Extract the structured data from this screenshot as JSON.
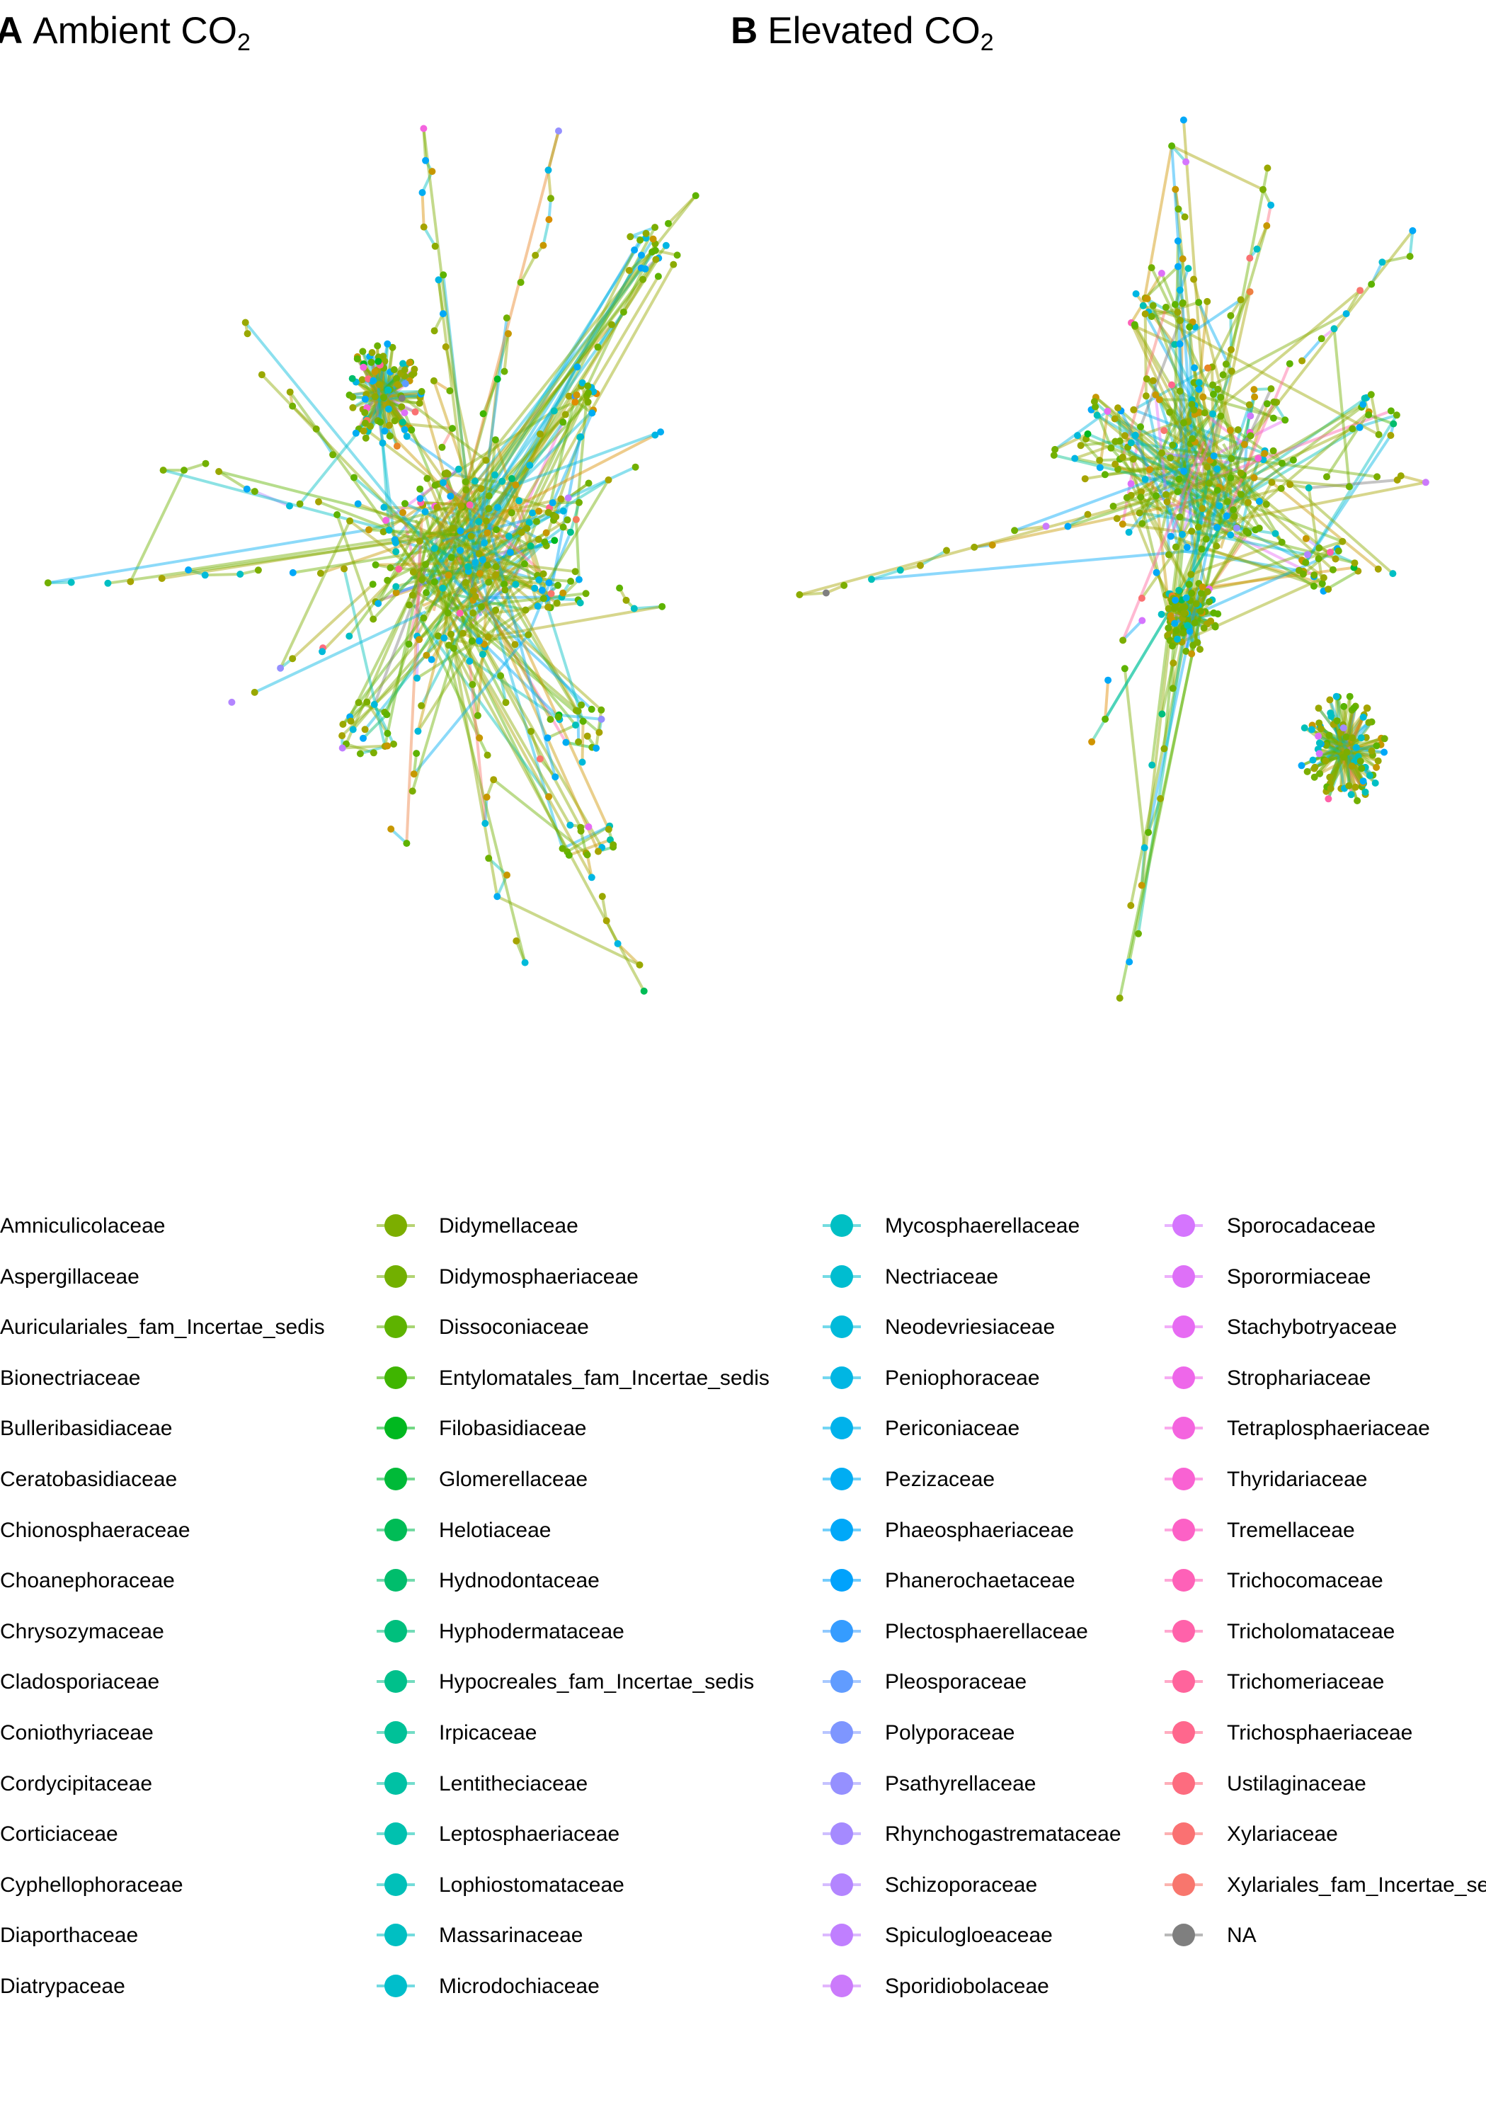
{
  "panels": [
    {
      "letter": "A",
      "title": "Ambient CO",
      "subscript": "2"
    },
    {
      "letter": "B",
      "title": "Elevated CO",
      "subscript": "2"
    }
  ],
  "legend": {
    "columns": [
      [
        {
          "label": "Amniculicolaceae",
          "color": "#F8766D"
        },
        {
          "label": "Aspergillaceae",
          "color": "#F47B5A"
        },
        {
          "label": "Auriculariales_fam_Incertae_sedis",
          "color": "#EE8043"
        },
        {
          "label": "Bionectriaceae",
          "color": "#E88526"
        },
        {
          "label": "Bulleribasidiaceae",
          "color": "#E18A00"
        },
        {
          "label": "Ceratobasidiaceae",
          "color": "#D98F00"
        },
        {
          "label": "Chionosphaeraceae",
          "color": "#D09400"
        },
        {
          "label": "Choanephoraceae",
          "color": "#C79800"
        },
        {
          "label": "Chrysozymaceae",
          "color": "#BD9D00"
        },
        {
          "label": "Cladosporiaceae",
          "color": "#B2A100"
        },
        {
          "label": "Coniothyriaceae",
          "color": "#A6A400"
        },
        {
          "label": "Cordycipitaceae",
          "color": "#99A800"
        },
        {
          "label": "Corticiaceae",
          "color": "#8CAB00"
        },
        {
          "label": "Cyphellophoraceae",
          "color": "#7DAE00"
        },
        {
          "label": "Diaporthaceae",
          "color": "#6DB100"
        },
        {
          "label": "Diatrypaceae",
          "color": "#5AB300"
        }
      ],
      [
        {
          "label": "Didymellaceae",
          "color": "#7CAE00"
        },
        {
          "label": "Didymosphaeriaceae",
          "color": "#72B000"
        },
        {
          "label": "Dissoconiaceae",
          "color": "#5EB300"
        },
        {
          "label": "Entylomatales_fam_Incertae_sedis",
          "color": "#3FB500"
        },
        {
          "label": "Filobasidiaceae",
          "color": "#00B81F"
        },
        {
          "label": "Glomerellaceae",
          "color": "#00BA38"
        },
        {
          "label": "Helotiaceae",
          "color": "#00BC56"
        },
        {
          "label": "Hydnodontaceae",
          "color": "#00BD6C"
        },
        {
          "label": "Hyphodermataceae",
          "color": "#00BF7D"
        },
        {
          "label": "Hypocreales_fam_Incertae_sedis",
          "color": "#00C08B"
        },
        {
          "label": "Irpicaceae",
          "color": "#00C198"
        },
        {
          "label": "Lentitheciaceae",
          "color": "#00C1A4"
        },
        {
          "label": "Leptosphaeriaceae",
          "color": "#00C1AF"
        },
        {
          "label": "Lophiostomataceae",
          "color": "#00C0B9"
        },
        {
          "label": "Massarinaceae",
          "color": "#00BFC2"
        },
        {
          "label": "Microdochiaceae",
          "color": "#00BECB"
        }
      ],
      [
        {
          "label": "Mycosphaerellaceae",
          "color": "#00BFC4"
        },
        {
          "label": "Nectriaceae",
          "color": "#00BDD0"
        },
        {
          "label": "Neodevriesiaceae",
          "color": "#00BADA"
        },
        {
          "label": "Peniophoraceae",
          "color": "#00B6E3"
        },
        {
          "label": "Periconiaceae",
          "color": "#00B2EB"
        },
        {
          "label": "Pezizaceae",
          "color": "#00ADF2"
        },
        {
          "label": "Phaeosphaeriaceae",
          "color": "#00A8F8"
        },
        {
          "label": "Phanerochaetaceae",
          "color": "#00A2FC"
        },
        {
          "label": "Plectosphaerellaceae",
          "color": "#359CFF"
        },
        {
          "label": "Pleosporaceae",
          "color": "#619CFF"
        },
        {
          "label": "Polyporaceae",
          "color": "#7E96FF"
        },
        {
          "label": "Psathyrellaceae",
          "color": "#9590FF"
        },
        {
          "label": "Rhynchogastremataceae",
          "color": "#A58AFF"
        },
        {
          "label": "Schizoporaceae",
          "color": "#B385FF"
        },
        {
          "label": "Spiculogloeaceae",
          "color": "#C07FFF"
        },
        {
          "label": "Sporidiobolaceae",
          "color": "#CB7AFB"
        }
      ],
      [
        {
          "label": "Sporocadaceae",
          "color": "#D575FE"
        },
        {
          "label": "Sporormiaceae",
          "color": "#DE70F8"
        },
        {
          "label": "Stachybotryaceae",
          "color": "#E76BF3"
        },
        {
          "label": "Strophariaceae",
          "color": "#EE67EA"
        },
        {
          "label": "Tetraplosphaeriaceae",
          "color": "#F464DF"
        },
        {
          "label": "Thyridariaceae",
          "color": "#F962D3"
        },
        {
          "label": "Tremellaceae",
          "color": "#FC61C6"
        },
        {
          "label": "Trichocomaceae",
          "color": "#FE61B8"
        },
        {
          "label": "Tricholomataceae",
          "color": "#FF62AA"
        },
        {
          "label": "Trichomeriaceae",
          "color": "#FF649C"
        },
        {
          "label": "Trichosphaeriaceae",
          "color": "#FF678D"
        },
        {
          "label": "Ustilaginaceae",
          "color": "#FD6C7F"
        },
        {
          "label": "Xylariaceae",
          "color": "#FA7172"
        },
        {
          "label": "Xylariales_fam_Incertae_sedis",
          "color": "#F8766D"
        },
        {
          "label": "NA",
          "color": "#7F7F7F"
        }
      ]
    ]
  }
}
